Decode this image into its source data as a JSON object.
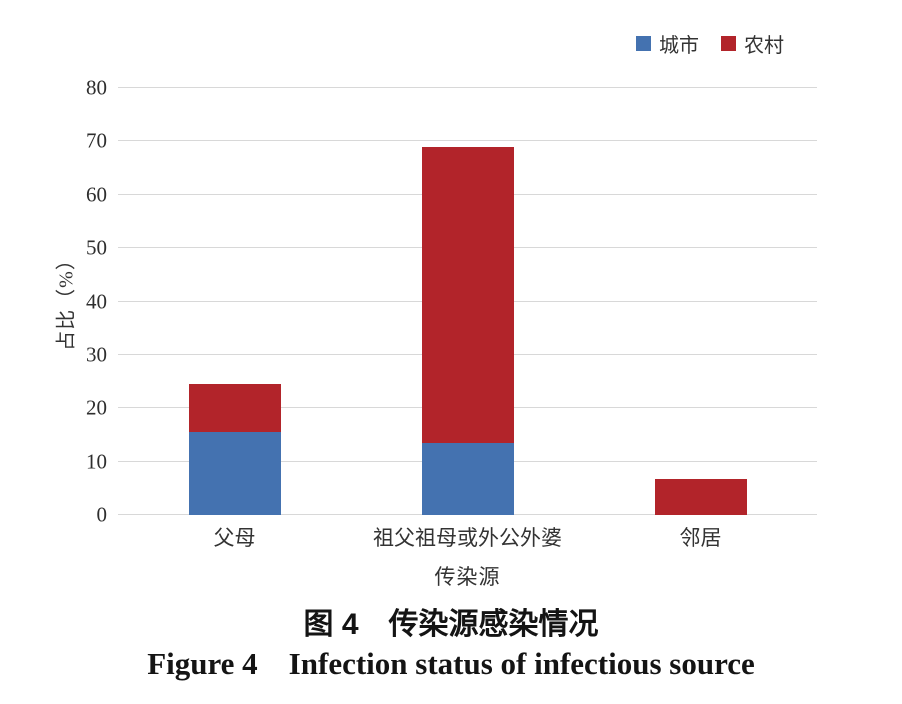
{
  "chart_data": {
    "type": "bar",
    "stacked": true,
    "title": "",
    "categories": [
      "父母",
      "祖父祖母或外公外婆",
      "邻居"
    ],
    "series": [
      {
        "key": "city",
        "name": "城市",
        "color": "#4472b0",
        "values": [
          15.5,
          13.5,
          0
        ]
      },
      {
        "key": "rural",
        "name": "农村",
        "color": "#b2242a",
        "values": [
          9,
          55.5,
          6.7
        ]
      }
    ],
    "stacked_totals": [
      24.5,
      69,
      6.7
    ],
    "xlabel": "传染源",
    "ylabel": "占比（%）",
    "ylim": [
      0,
      80
    ],
    "yticks": [
      0,
      10,
      20,
      30,
      40,
      50,
      60,
      70,
      80
    ],
    "grid": "horizontal",
    "gridline_color": "#d8d8d8",
    "legend_position": "top-right"
  },
  "captions": {
    "zh": "图 4　传染源感染情况",
    "en": "Figure 4 Infection status of infectious source"
  }
}
